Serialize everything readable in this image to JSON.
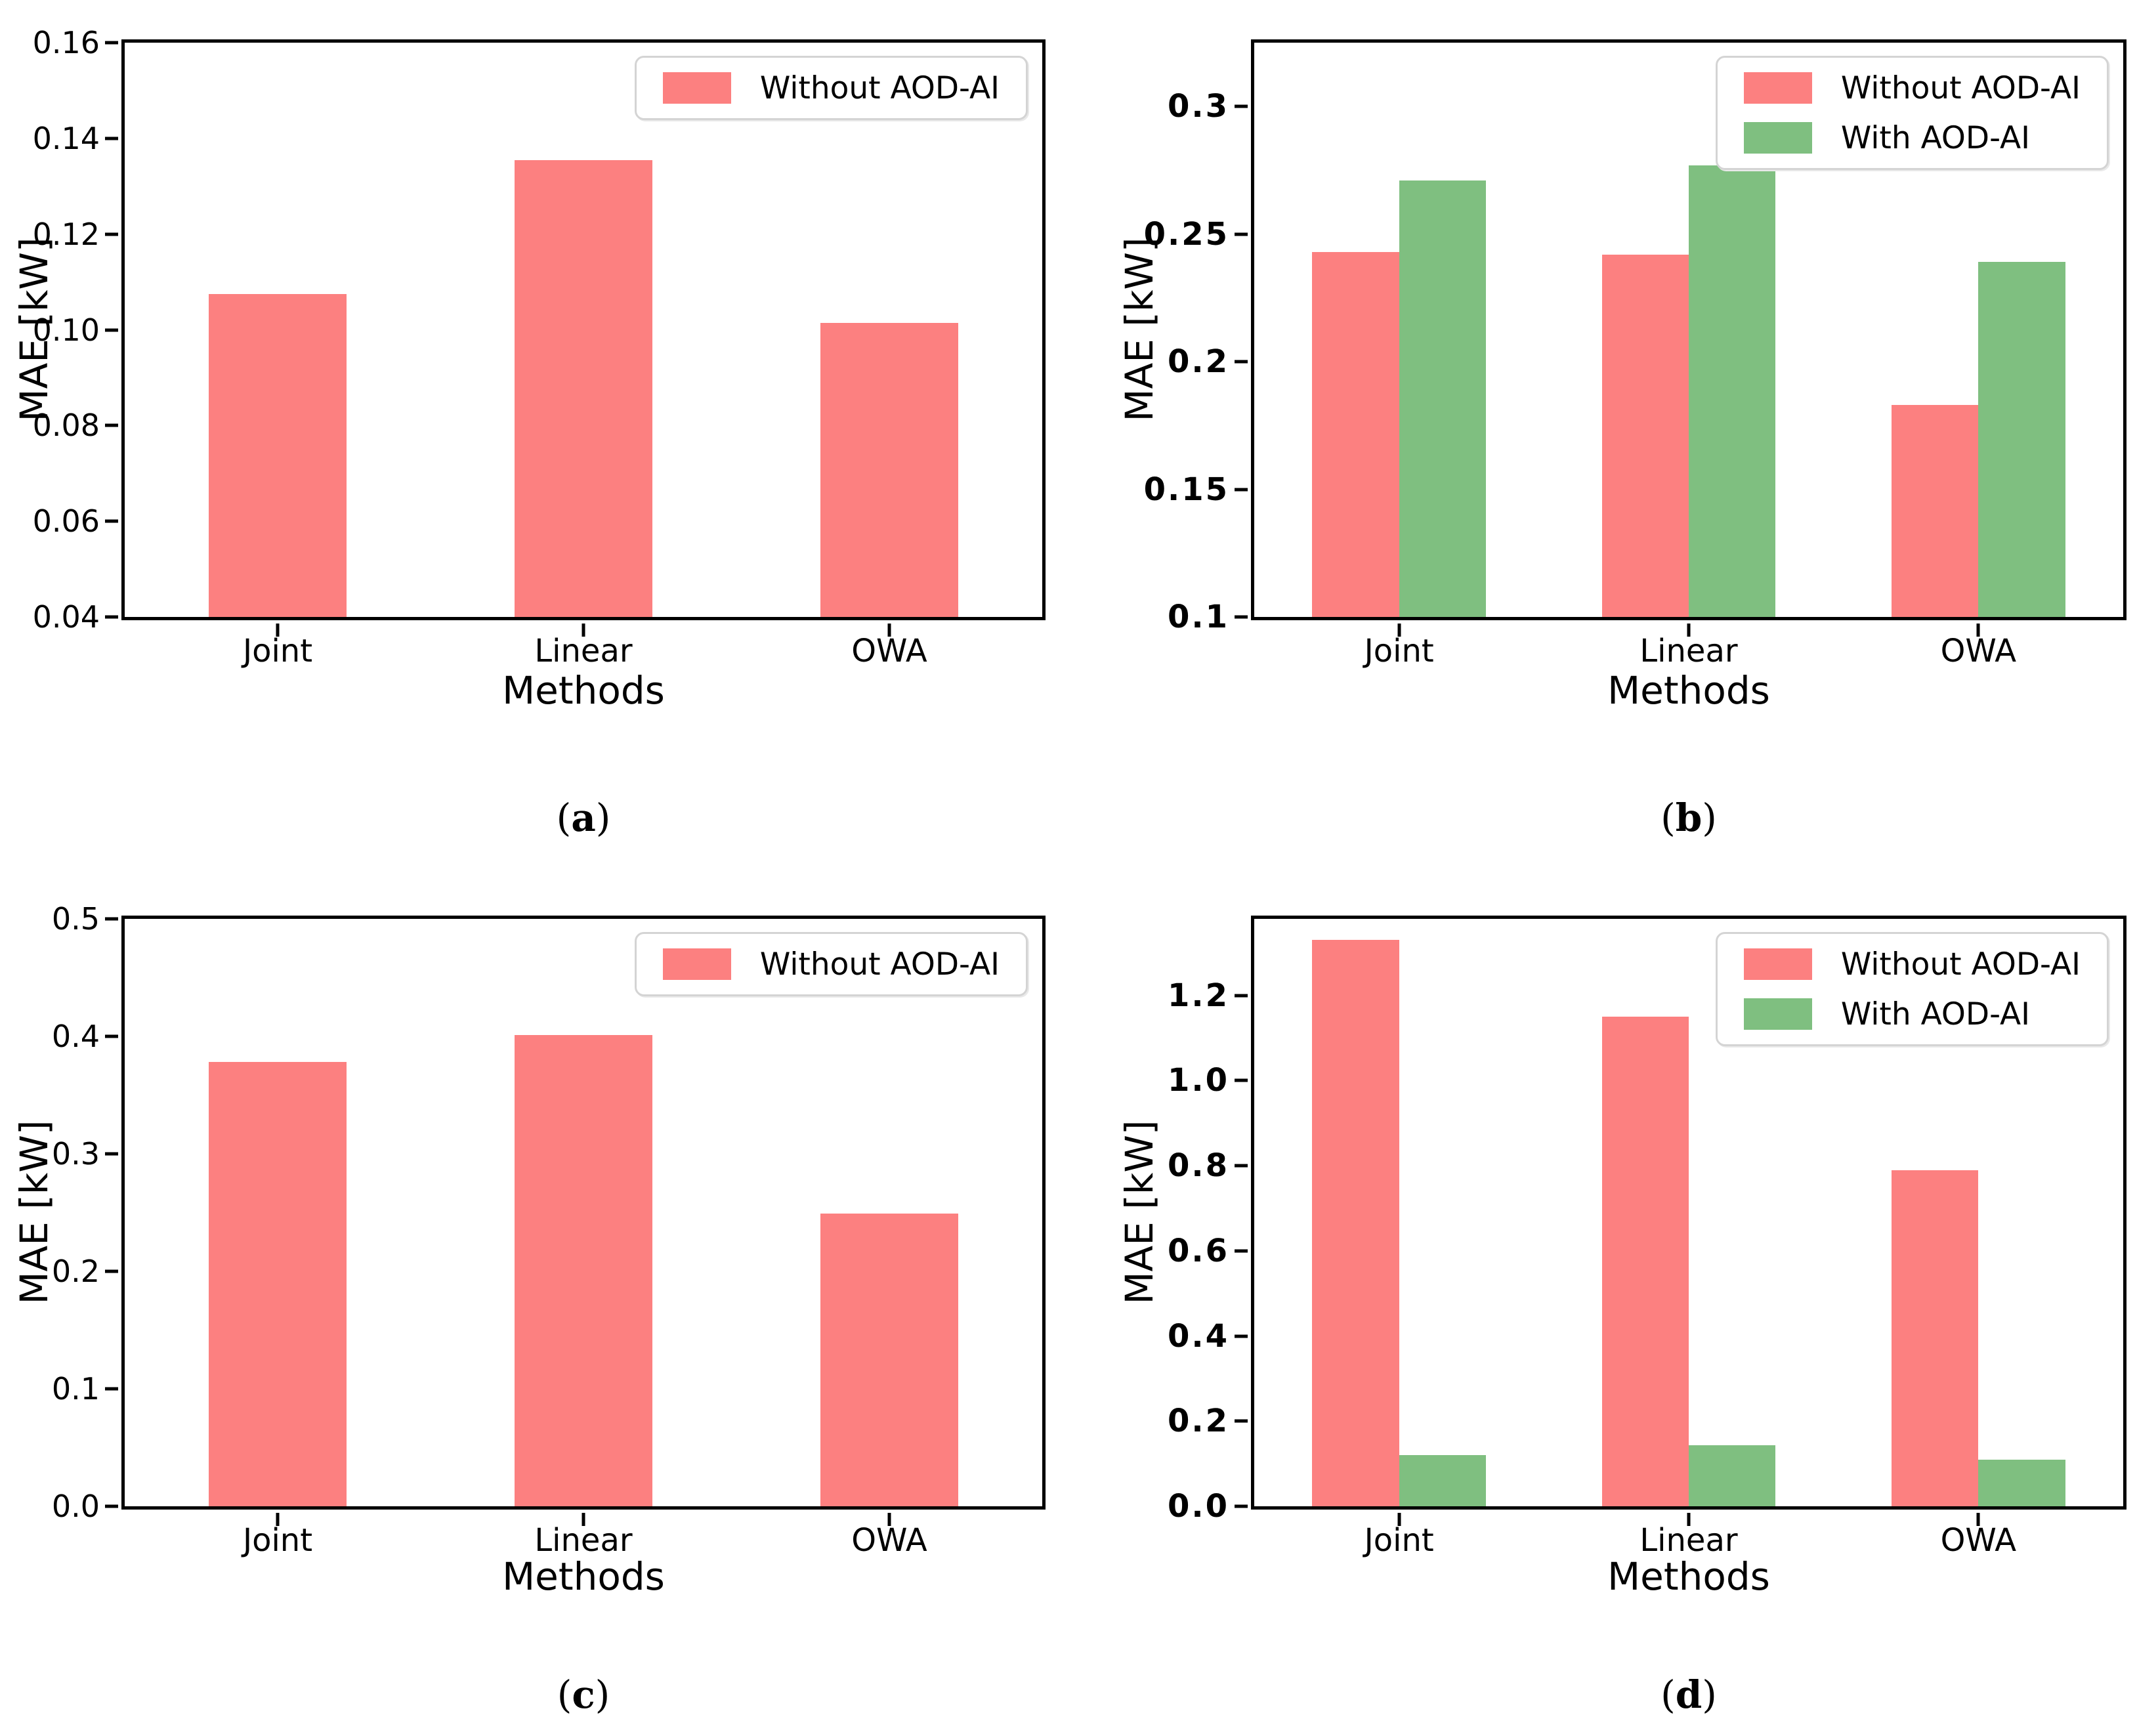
{
  "chart_data": [
    {
      "type": "bar",
      "panel": "a",
      "caption": {
        "open": "(",
        "letter": "a",
        "close": ")"
      },
      "title": "",
      "xlabel": "Methods",
      "ylabel": "MAE [kW]",
      "categories": [
        "Joint",
        "Linear",
        "OWA"
      ],
      "series": [
        {
          "name": "Without AOD-AI",
          "color": "#fc8080",
          "values": [
            0.1075,
            0.1355,
            0.1015
          ]
        }
      ],
      "ylim": [
        0.04,
        0.16
      ],
      "yticks": [
        0.04,
        0.06,
        0.08,
        0.1,
        0.12,
        0.14,
        0.16
      ],
      "ytick_labels": [
        "0.04",
        "0.06",
        "0.08",
        "0.10",
        "0.12",
        "0.14",
        "0.16"
      ],
      "bar_width": 0.45,
      "bold_yticks": false,
      "grid": false,
      "legend": {
        "position": "upper right",
        "entries": [
          {
            "label": "Without AOD-AI",
            "color": "#fc8080"
          }
        ]
      }
    },
    {
      "type": "bar",
      "panel": "b",
      "caption": {
        "open": "(",
        "letter": "b",
        "close": ")"
      },
      "title": "",
      "xlabel": "Methods",
      "ylabel": "MAE [kW]",
      "categories": [
        "Joint",
        "Linear",
        "OWA"
      ],
      "series": [
        {
          "name": "Without AOD-AI",
          "color": "#fc8080",
          "values": [
            0.243,
            0.242,
            0.183
          ]
        },
        {
          "name": "With AOD-AI",
          "color": "#7fbf80",
          "values": [
            0.271,
            0.277,
            0.239
          ]
        }
      ],
      "ylim": [
        0.1,
        0.325
      ],
      "yticks": [
        0.1,
        0.15,
        0.2,
        0.25,
        0.3
      ],
      "ytick_labels": [
        "0.1",
        "0.15",
        "0.2",
        "0.25",
        "0.3"
      ],
      "bar_width": 0.3,
      "bold_yticks": true,
      "grid": false,
      "legend": {
        "position": "upper right",
        "entries": [
          {
            "label": "Without AOD-AI",
            "color": "#fc8080"
          },
          {
            "label": "With AOD-AI",
            "color": "#7fbf80"
          }
        ]
      }
    },
    {
      "type": "bar",
      "panel": "c",
      "caption": {
        "open": "(",
        "letter": "c",
        "close": ")"
      },
      "title": "",
      "xlabel": "Methods",
      "ylabel": "MAE [kW]",
      "categories": [
        "Joint",
        "Linear",
        "OWA"
      ],
      "series": [
        {
          "name": "Without AOD-AI",
          "color": "#fc8080",
          "values": [
            0.378,
            0.401,
            0.249
          ]
        }
      ],
      "ylim": [
        0.0,
        0.5
      ],
      "yticks": [
        0.0,
        0.1,
        0.2,
        0.3,
        0.4,
        0.5
      ],
      "ytick_labels": [
        "0.0",
        "0.1",
        "0.2",
        "0.3",
        "0.4",
        "0.5"
      ],
      "bar_width": 0.45,
      "bold_yticks": false,
      "grid": false,
      "legend": {
        "position": "upper right",
        "entries": [
          {
            "label": "Without AOD-AI",
            "color": "#fc8080"
          }
        ]
      }
    },
    {
      "type": "bar",
      "panel": "d",
      "caption": {
        "open": "(",
        "letter": "d",
        "close": ")"
      },
      "title": "",
      "xlabel": "Methods",
      "ylabel": "MAE [kW]",
      "categories": [
        "Joint",
        "Linear",
        "OWA"
      ],
      "series": [
        {
          "name": "Without AOD-AI",
          "color": "#fc8080",
          "values": [
            1.33,
            1.15,
            0.79
          ]
        },
        {
          "name": "With AOD-AI",
          "color": "#7fbf80",
          "values": [
            0.12,
            0.143,
            0.11
          ]
        }
      ],
      "ylim": [
        0.0,
        1.38
      ],
      "yticks": [
        0.0,
        0.2,
        0.4,
        0.6,
        0.8,
        1.0,
        1.2
      ],
      "ytick_labels": [
        "0.0",
        "0.2",
        "0.4",
        "0.6",
        "0.8",
        "1.0",
        "1.2"
      ],
      "bar_width": 0.3,
      "bold_yticks": true,
      "grid": false,
      "legend": {
        "position": "upper right",
        "entries": [
          {
            "label": "Without AOD-AI",
            "color": "#fc8080"
          },
          {
            "label": "With AOD-AI",
            "color": "#7fbf80"
          }
        ]
      }
    }
  ]
}
